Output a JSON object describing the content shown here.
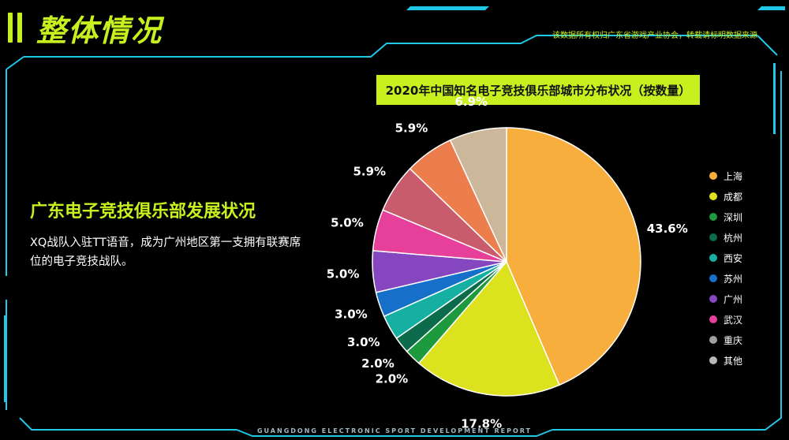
{
  "header": {
    "title": "整体情况",
    "source_note": "该数据所有权归广东省游戏产业协会，转载请标明数据来源"
  },
  "section": {
    "heading": "广东电子竞技俱乐部发展状况",
    "body": "XQ战队入驻TT语音，成为广州地区第一支拥有联赛席位的电子竞技战队。"
  },
  "footer": {
    "text": "GUANGDONG ELECTRONIC SPORT DEVELOPMENT REPORT"
  },
  "colors": {
    "accent": "#c8f01e",
    "frame": "#1ec8e6",
    "background": "#000000"
  },
  "chart_data": {
    "type": "pie",
    "title": "2020年中国知名电子竞技俱乐部城市分布状况（按数量）",
    "legend_position": "right",
    "slices": [
      {
        "name": "上海",
        "value": 43.6,
        "label": "43.6%",
        "color": "#f7ae3d"
      },
      {
        "name": "成都",
        "value": 17.8,
        "label": "17.8%",
        "color": "#dce21e"
      },
      {
        "name": "深圳",
        "value": 2.0,
        "label": "2.0%",
        "color": "#1d9a3e"
      },
      {
        "name": "杭州",
        "value": 2.0,
        "label": "2.0%",
        "color": "#0c6b4a"
      },
      {
        "name": "西安",
        "value": 3.0,
        "label": "3.0%",
        "color": "#16b0a3"
      },
      {
        "name": "苏州",
        "value": 3.0,
        "label": "3.0%",
        "color": "#1670c9"
      },
      {
        "name": "广州",
        "value": 5.0,
        "label": "5.0%",
        "color": "#8546c0"
      },
      {
        "name": "武汉",
        "value": 5.0,
        "label": "5.0%",
        "color": "#e7409a"
      },
      {
        "name": "重庆",
        "value": 5.9,
        "label": "5.9%",
        "color": "#c95c6c"
      },
      {
        "name": "其他",
        "value": 5.9,
        "label": "5.9%",
        "color": "#ec7d4c"
      },
      {
        "name": "",
        "value": 6.9,
        "label": "6.9%",
        "color": "#cdb79a"
      }
    ],
    "legend": [
      {
        "name": "上海",
        "color": "#f7ae3d"
      },
      {
        "name": "成都",
        "color": "#dce21e"
      },
      {
        "name": "深圳",
        "color": "#1d9a3e"
      },
      {
        "name": "杭州",
        "color": "#0c6b4a"
      },
      {
        "name": "西安",
        "color": "#16b0a3"
      },
      {
        "name": "苏州",
        "color": "#1670c9"
      },
      {
        "name": "广州",
        "color": "#8546c0"
      },
      {
        "name": "武汉",
        "color": "#e7409a"
      },
      {
        "name": "重庆",
        "color": "#a0a0a0"
      },
      {
        "name": "其他",
        "color": "#b8b8b8"
      }
    ]
  }
}
